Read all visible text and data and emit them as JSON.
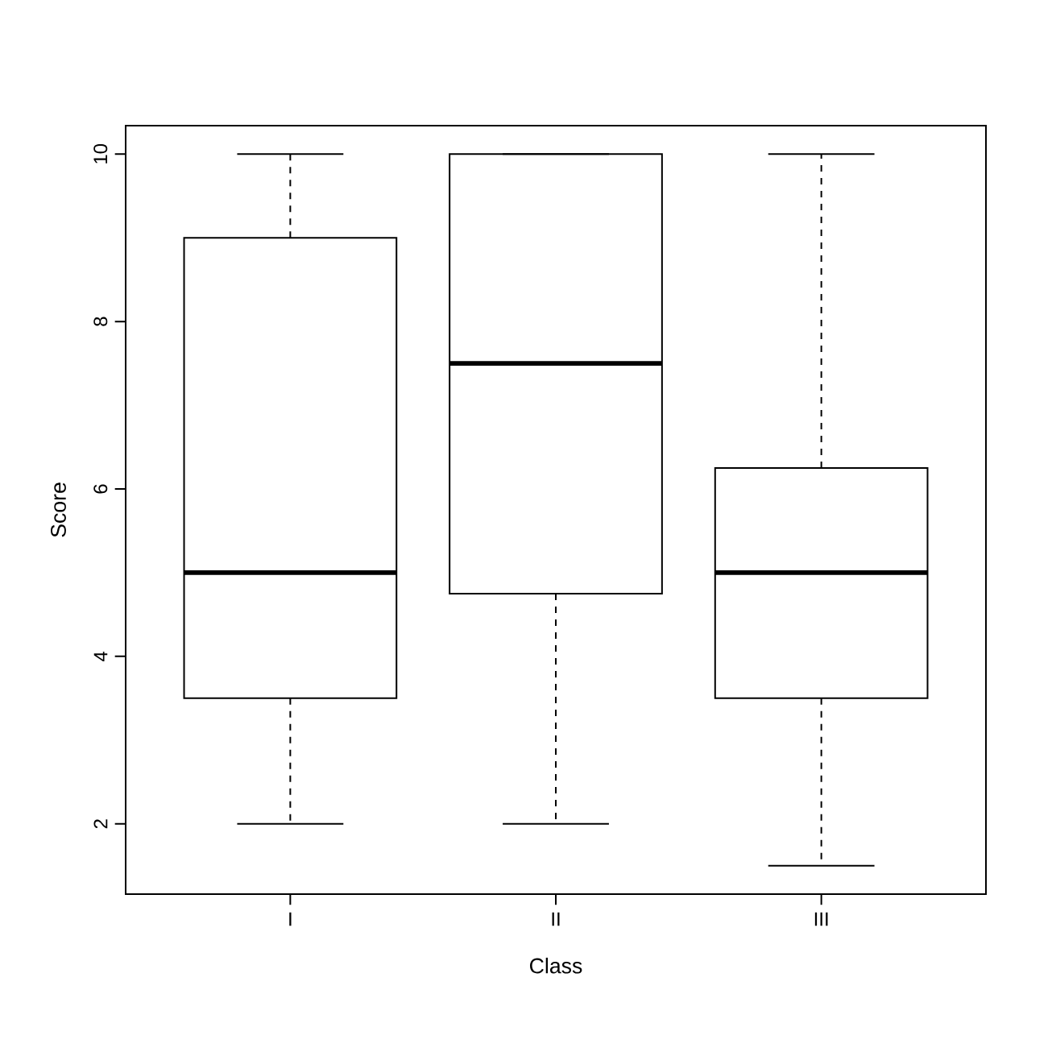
{
  "chart_data": {
    "type": "box",
    "xlabel": "Class",
    "ylabel": "Score",
    "categories": [
      "I",
      "II",
      "III"
    ],
    "boxes": [
      {
        "low": 2,
        "q1": 3.5,
        "median": 5,
        "q3": 9,
        "high": 10
      },
      {
        "low": 2,
        "q1": 4.75,
        "median": 7.5,
        "q3": 10,
        "high": 10
      },
      {
        "low": 1.5,
        "q1": 3.5,
        "median": 5,
        "q3": 6.25,
        "high": 10
      }
    ],
    "ylim": [
      1.16,
      10.34
    ],
    "yticks": [
      2,
      4,
      6,
      8,
      10
    ],
    "grid": false
  }
}
